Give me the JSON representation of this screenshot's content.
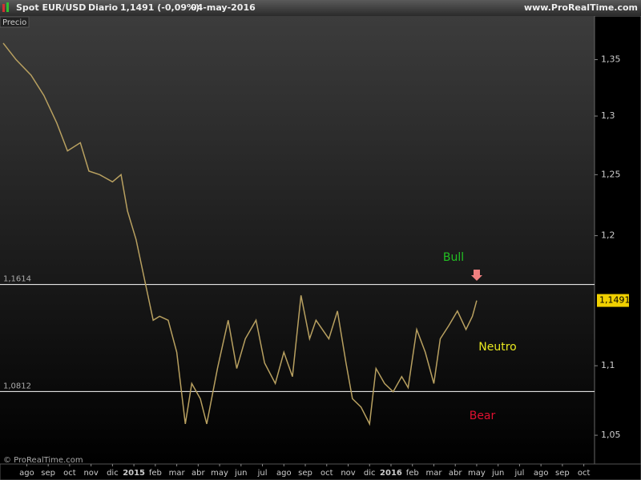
{
  "chart_data": {
    "type": "line",
    "title": "Spot EUR/USD",
    "interval": "Diario",
    "change": "1,1491 (-0,09%)",
    "date": "04-may-2016",
    "source": "www.ProRealTime.com",
    "panel_label": "Precio",
    "copyright": "© ProRealTime.com",
    "log_y": true,
    "series": [
      {
        "name": "Spot EUR/USD",
        "color": "#b8a060",
        "x": [
          -1.1,
          -0.5,
          0.2,
          0.8,
          1.4,
          1.9,
          2.5,
          2.9,
          3.4,
          4.0,
          4.4,
          4.7,
          5.1,
          5.5,
          5.9,
          6.2,
          6.6,
          7.0,
          7.4,
          7.7,
          8.1,
          8.4,
          8.9,
          9.4,
          9.8,
          10.2,
          10.7,
          11.1,
          11.6,
          12.0,
          12.4,
          12.8,
          13.2,
          13.5,
          14.1,
          14.5,
          14.9,
          15.2,
          15.6,
          16.0,
          16.3,
          16.7,
          17.1,
          17.5,
          17.8,
          18.2,
          18.6,
          19.0,
          19.3,
          19.7,
          20.1,
          20.5,
          20.8,
          21.0
        ],
        "values": [
          1.365,
          1.35,
          1.336,
          1.318,
          1.294,
          1.27,
          1.277,
          1.253,
          1.25,
          1.244,
          1.25,
          1.22,
          1.197,
          1.165,
          1.134,
          1.137,
          1.134,
          1.11,
          1.058,
          1.087,
          1.076,
          1.058,
          1.098,
          1.134,
          1.098,
          1.12,
          1.134,
          1.102,
          1.087,
          1.11,
          1.092,
          1.153,
          1.12,
          1.134,
          1.12,
          1.141,
          1.102,
          1.076,
          1.07,
          1.058,
          1.098,
          1.087,
          1.081,
          1.092,
          1.084,
          1.127,
          1.11,
          1.087,
          1.12,
          1.13,
          1.141,
          1.127,
          1.137,
          1.149
        ]
      }
    ],
    "xlim": [
      -1.25,
      26.5
    ],
    "xticks": [
      {
        "value": 0,
        "label": "ago"
      },
      {
        "value": 1,
        "label": "sep"
      },
      {
        "value": 2,
        "label": "oct"
      },
      {
        "value": 3,
        "label": "nov"
      },
      {
        "value": 4,
        "label": "dic"
      },
      {
        "value": 5,
        "label": "2015"
      },
      {
        "value": 6,
        "label": "feb"
      },
      {
        "value": 7,
        "label": "mar"
      },
      {
        "value": 8,
        "label": "abr"
      },
      {
        "value": 9,
        "label": "may"
      },
      {
        "value": 10,
        "label": "jun"
      },
      {
        "value": 11,
        "label": "jul"
      },
      {
        "value": 12,
        "label": "ago"
      },
      {
        "value": 13,
        "label": "sep"
      },
      {
        "value": 14,
        "label": "oct"
      },
      {
        "value": 15,
        "label": "nov"
      },
      {
        "value": 16,
        "label": "dic"
      },
      {
        "value": 17,
        "label": "2016"
      },
      {
        "value": 18,
        "label": "feb"
      },
      {
        "value": 19,
        "label": "mar"
      },
      {
        "value": 20,
        "label": "abr"
      },
      {
        "value": 21,
        "label": "may"
      },
      {
        "value": 22,
        "label": "jun"
      },
      {
        "value": 23,
        "label": "jul"
      },
      {
        "value": 24,
        "label": "ago"
      },
      {
        "value": 25,
        "label": "sep"
      },
      {
        "value": 26,
        "label": "oct"
      }
    ],
    "ylim": [
      1.03,
      1.39
    ],
    "yticks": [
      {
        "value": 1.05,
        "label": "1,05"
      },
      {
        "value": 1.1,
        "label": "1,1"
      },
      {
        "value": 1.2,
        "label": "1,2"
      },
      {
        "value": 1.25,
        "label": "1,25"
      },
      {
        "value": 1.3,
        "label": "1,3"
      },
      {
        "value": 1.35,
        "label": "1,35"
      }
    ],
    "hlines": [
      {
        "value": 1.1614,
        "label": "1,1614"
      },
      {
        "value": 1.0812,
        "label": "1,0812"
      }
    ],
    "last_price": {
      "value": 1.1491,
      "label": "1,1491"
    },
    "annotations": [
      {
        "text": "Bull",
        "color": "#22c022"
      },
      {
        "text": "Neutro",
        "color": "#e8e820"
      },
      {
        "text": "Bear",
        "color": "#e01030"
      }
    ]
  }
}
